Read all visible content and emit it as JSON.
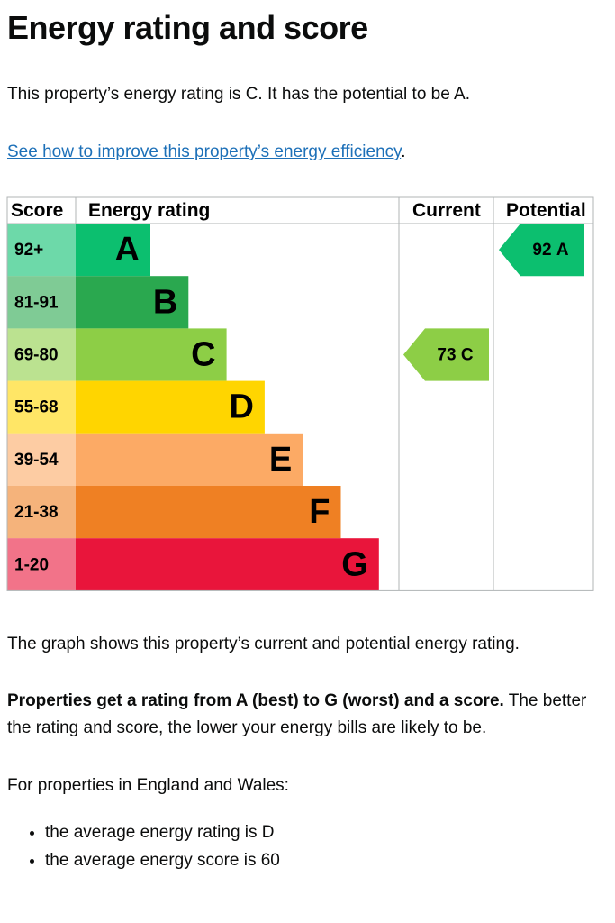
{
  "title": "Energy rating and score",
  "intro": "This property’s energy rating is C. It has the potential to be A.",
  "link": "See how to improve this property’s energy efficiency",
  "link_end": ".",
  "table": {
    "headers": [
      "Score",
      "Energy rating",
      "Current",
      "Potential"
    ],
    "bands": [
      {
        "score": "92+",
        "letter": "A",
        "color": "#0cbf6f"
      },
      {
        "score": "81-91",
        "letter": "B",
        "color": "#2aa84f"
      },
      {
        "score": "69-80",
        "letter": "C",
        "color": "#8dce46"
      },
      {
        "score": "55-68",
        "letter": "D",
        "color": "#ffd500"
      },
      {
        "score": "39-54",
        "letter": "E",
        "color": "#fcaa65"
      },
      {
        "score": "21-38",
        "letter": "F",
        "color": "#ef8023"
      },
      {
        "score": "1-20",
        "letter": "G",
        "color": "#e9153b"
      }
    ],
    "current": {
      "score": 73,
      "rating": "C"
    },
    "potential": {
      "score": 92,
      "rating": "A"
    }
  },
  "graph_note": "The graph shows this property’s current and potential energy rating.",
  "rating_bold": "Properties get a rating from A (best) to G (worst) and a score.",
  "rating_rest": "The better the rating and score, the lower your energy bills are likely to be.",
  "region": "For properties in England and Wales:",
  "averages": [
    "the average energy rating is D",
    "the average energy score is 60"
  ]
}
